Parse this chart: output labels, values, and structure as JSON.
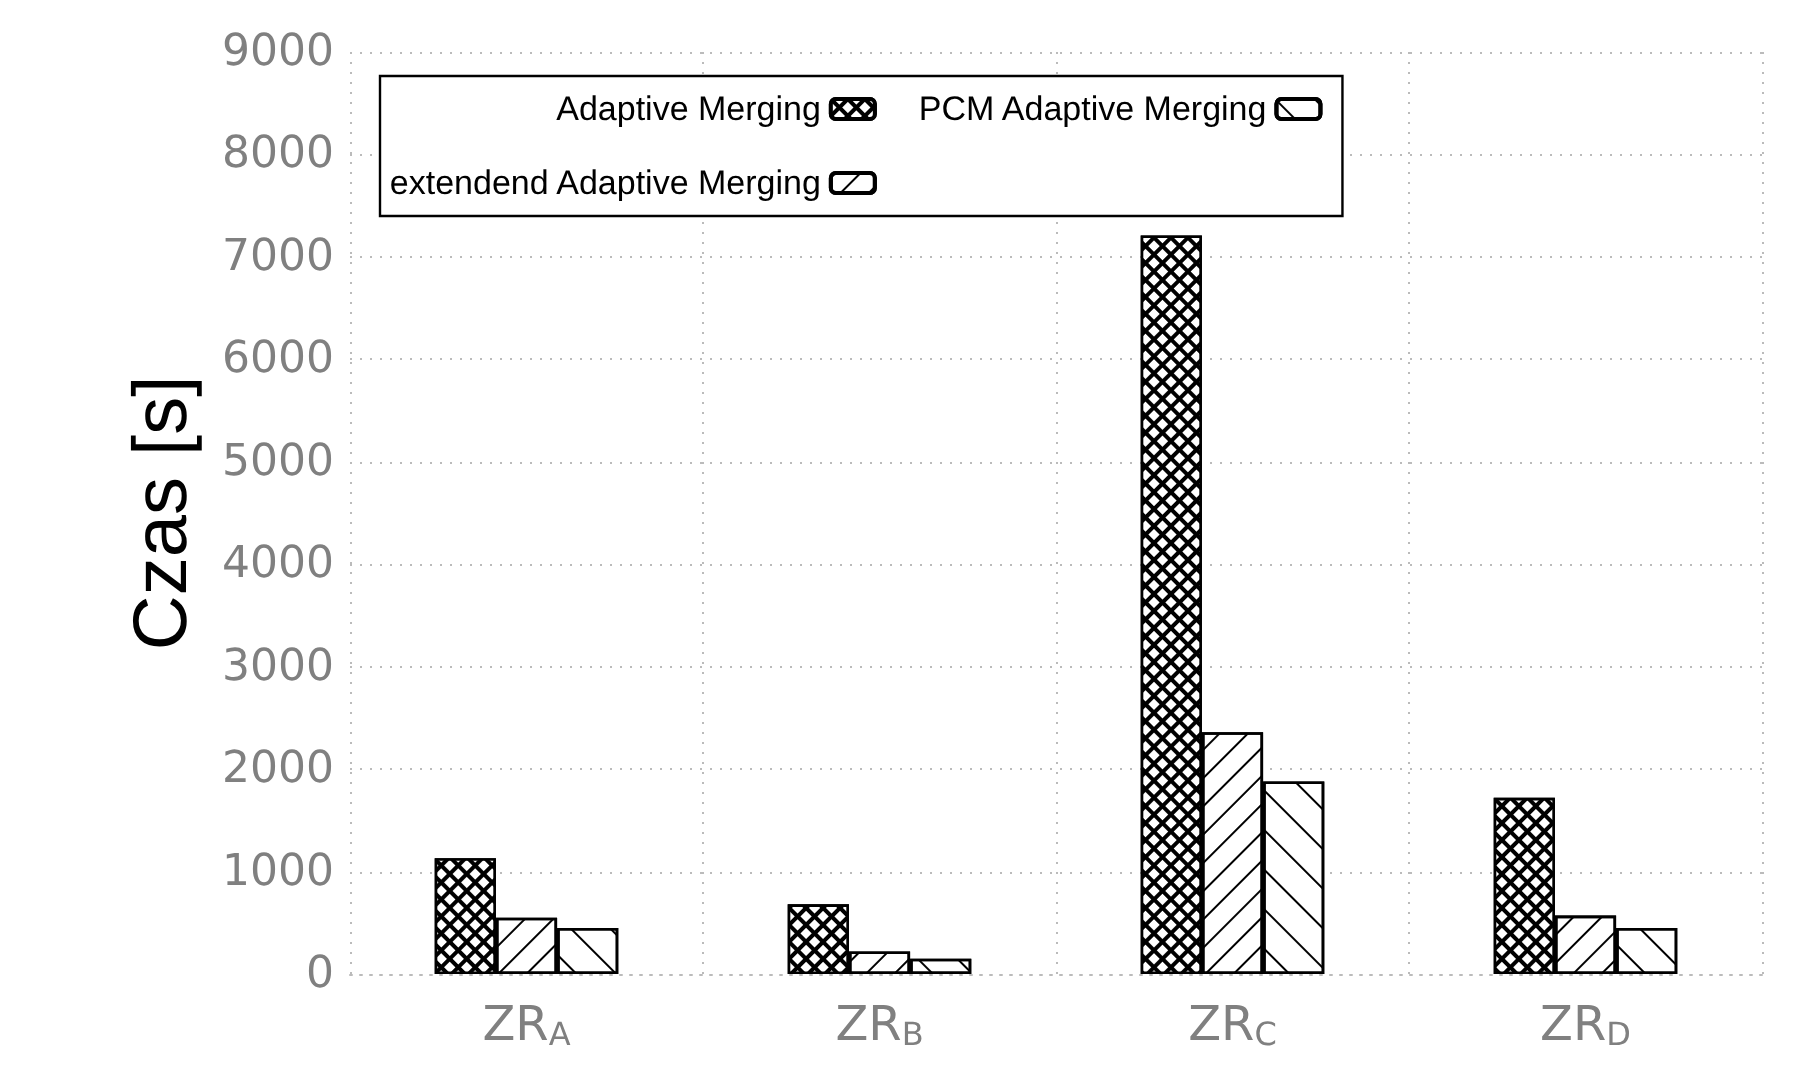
{
  "chart_data": {
    "type": "bar",
    "ylabel": "Czas [s]",
    "categories": [
      "ZR$_{A}$",
      "ZR$_{B}$",
      "ZR$_{C}$",
      "ZR$_{D}$"
    ],
    "series": [
      {
        "name": "Adaptive Merging",
        "color": "#ffffff",
        "values": [
          1130,
          680,
          7210,
          1720
        ]
      },
      {
        "name": "extendend Adaptive Merging",
        "color": "#ffffff",
        "values": [
          550,
          220,
          2360,
          570
        ]
      },
      {
        "name": "PCM Adaptive Merging",
        "color": "#ffffff",
        "values": [
          450,
          150,
          1880,
          450
        ]
      }
    ],
    "ylim": [
      0,
      9000
    ],
    "yticks": [
      0,
      1000,
      2000,
      3000,
      4000,
      5000,
      6000,
      7000,
      8000,
      9000
    ],
    "grid": true,
    "legend": "top"
  }
}
